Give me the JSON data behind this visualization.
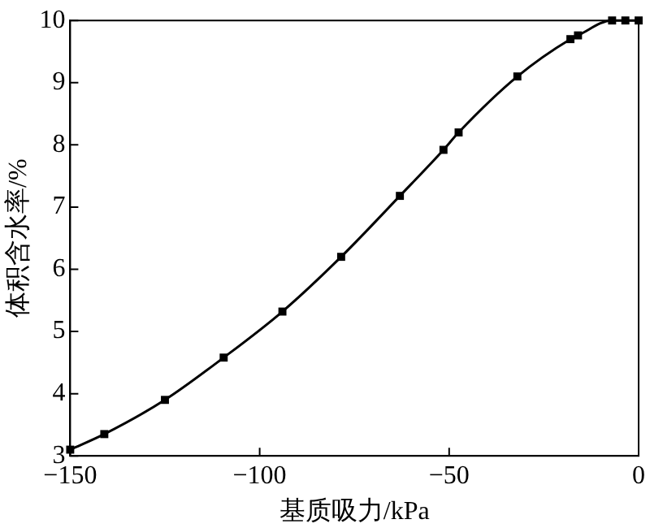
{
  "chart_data": {
    "type": "line",
    "xlabel": "基质吸力/kPa",
    "ylabel": "体积含水率/%",
    "x": [
      -150,
      -141,
      -125,
      -109.5,
      -94,
      -78.5,
      -63,
      -51.5,
      -47.5,
      -32,
      -18,
      -16,
      -7,
      -3.5,
      0
    ],
    "series": [
      {
        "color": "#000000",
        "values": [
          3.1,
          3.35,
          3.9,
          4.58,
          5.32,
          6.2,
          7.18,
          7.92,
          8.2,
          9.1,
          9.7,
          9.76,
          10,
          10,
          10
        ]
      }
    ],
    "xlim": [
      -150,
      0
    ],
    "xticks": [
      {
        "value": -150,
        "label": "−150"
      },
      {
        "value": -100,
        "label": "−100"
      },
      {
        "value": -50,
        "label": "−50"
      },
      0
    ],
    "ylim": [
      3,
      10
    ],
    "yticks": [
      3,
      4,
      5,
      6,
      7,
      8,
      9,
      10
    ],
    "grid": false,
    "legend": false,
    "marker": "square",
    "line_style": "solid"
  }
}
